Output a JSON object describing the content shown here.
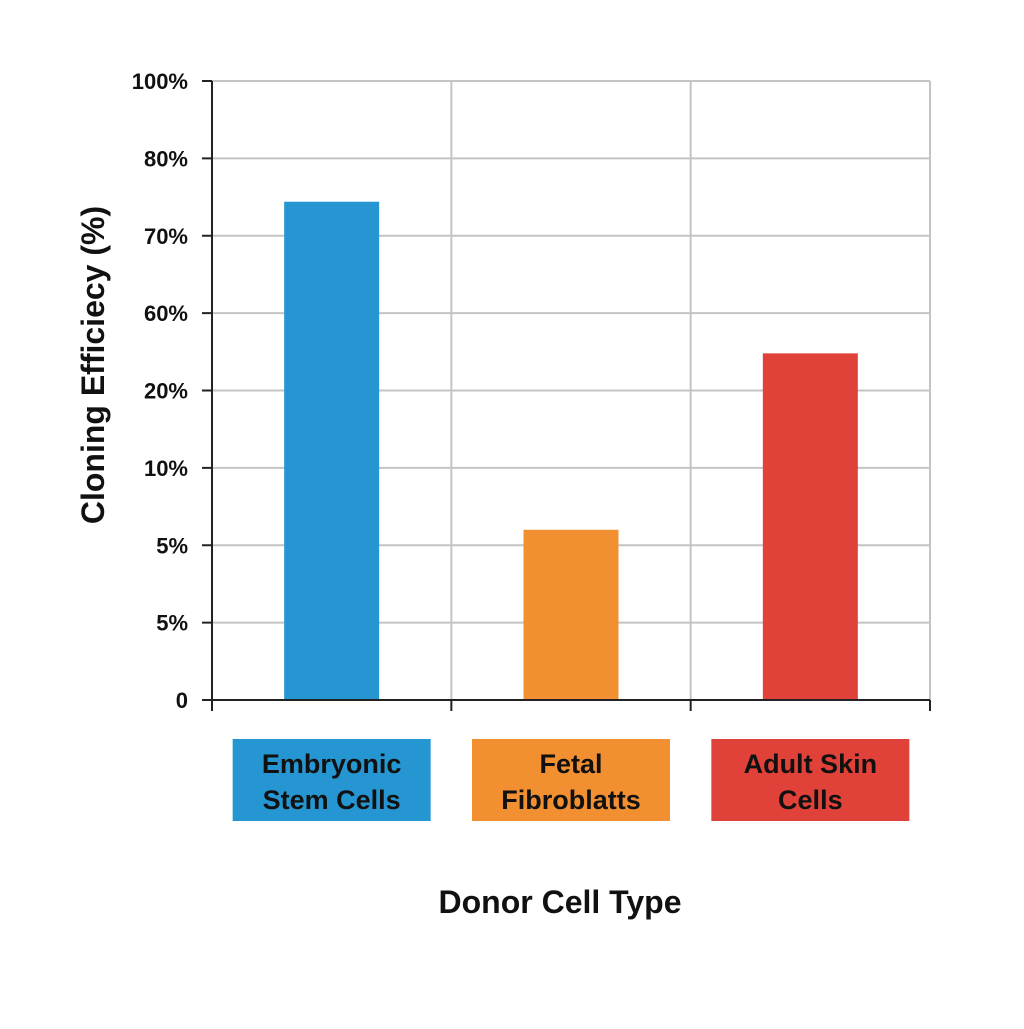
{
  "chart_data": {
    "type": "bar",
    "title": "",
    "xlabel": "Donor Cell Type",
    "ylabel": "Cloning Efficiecy (%)",
    "y_tick_labels": [
      "0",
      "5%",
      "5%",
      "10%",
      "20%",
      "60%",
      "70%",
      "80%",
      "100%"
    ],
    "categories": [
      {
        "lines": [
          "Embryonic",
          "Stem Cells"
        ],
        "color": "#2596d1"
      },
      {
        "lines": [
          "Fetal",
          "Fibroblatts"
        ],
        "color": "#f28f30"
      },
      {
        "lines": [
          "Adult Skin",
          "Cells"
        ],
        "color": "#e04239"
      }
    ],
    "values": [
      80.5,
      27.5,
      56
    ],
    "value_units": "tick index (8 equal steps, labels as printed)",
    "ylim": [
      0,
      100
    ],
    "grid": true,
    "legend": "none"
  }
}
